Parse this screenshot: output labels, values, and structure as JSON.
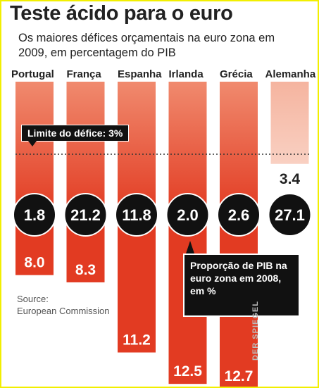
{
  "title": "Teste ácido para o euro",
  "subtitle": "Os maiores défices orçamentais na euro zona em 2009, em percentagem do PIB",
  "limit_label": "Limite do défice: 3%",
  "source": [
    "Source:",
    "European Commission"
  ],
  "note": "Proporção de PIB na euro zona em 2008, em %",
  "watermark": "DER SPIEGEL",
  "colors": {
    "deficit_bar": "#e23b22",
    "deficit_bar_light": "#f5b49f",
    "gdp_bubble": "#111111",
    "limit_line": "#333333"
  },
  "chart_data": {
    "type": "bar",
    "categories": [
      "Portugal",
      "França",
      "Espanha",
      "Irlanda",
      "Grécia",
      "Alemanha"
    ],
    "series": [
      {
        "name": "",
        "values": [
          8.0,
          8.3,
          11.2,
          12.5,
          12.7,
          3.4
        ]
      }
    ],
    "deficit_labels": [
      "8.0",
      "8.3",
      "11.2",
      "12.5",
      "12.7",
      "3.4"
    ],
    "gdp_share_2008": [
      1.8,
      21.2,
      11.8,
      2.0,
      2.6,
      27.1
    ],
    "gdp_share_labels": [
      "1.8",
      "21.2",
      "11.8",
      "2.0",
      "2.6",
      "27.1"
    ],
    "limit": 3,
    "title": "Teste ácido para o euro",
    "xlabel": "",
    "ylabel": ""
  }
}
